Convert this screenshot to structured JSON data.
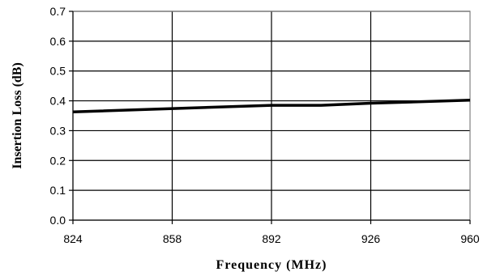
{
  "chart_data": {
    "type": "line",
    "title": "",
    "xlabel": "Frequency (MHz)",
    "ylabel": "Insertion Loss (dB)",
    "xlim": [
      824,
      960
    ],
    "ylim": [
      0,
      0.7
    ],
    "x_ticks": [
      "824",
      "858",
      "892",
      "926",
      "960"
    ],
    "y_ticks": [
      "0.0",
      "0.1",
      "0.2",
      "0.3",
      "0.4",
      "0.5",
      "0.6",
      "0.7"
    ],
    "grid": true,
    "legend": "none",
    "series": [
      {
        "color": "#000000",
        "x": [
          824,
          892,
          909,
          926,
          960
        ],
        "y": [
          0.363,
          0.385,
          0.385,
          0.392,
          0.402
        ]
      }
    ]
  }
}
